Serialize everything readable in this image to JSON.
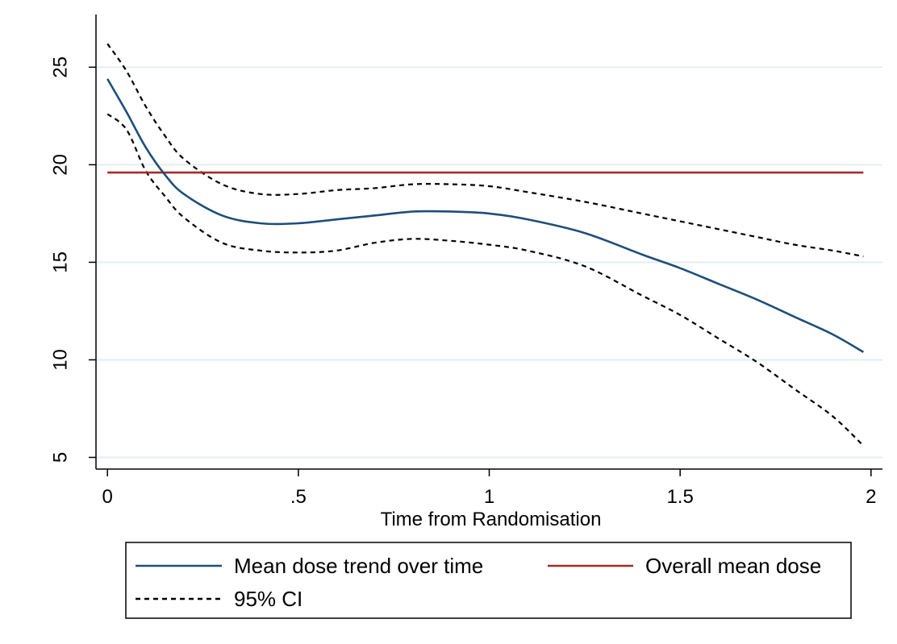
{
  "chart_data": {
    "type": "line",
    "title": "",
    "xlabel": "Time from Randomisation",
    "ylabel": "",
    "xlim": [
      -0.03,
      2.03
    ],
    "ylim": [
      4.4,
      27.7
    ],
    "x_ticks": [
      0,
      0.5,
      1,
      1.5,
      2
    ],
    "x_tick_labels": [
      "0",
      ".5",
      "1",
      "1.5",
      "2"
    ],
    "y_ticks": [
      5,
      10,
      15,
      20,
      25
    ],
    "y_tick_labels": [
      "5",
      "10",
      "15",
      "20",
      "25"
    ],
    "grid": "horizontal",
    "legend_position": "bottom",
    "series": [
      {
        "name": "Mean dose trend over time",
        "color": "#1f4e79",
        "style": "solid",
        "points": [
          [
            0,
            24.4
          ],
          [
            0.05,
            22.7
          ],
          [
            0.1,
            20.9
          ],
          [
            0.15,
            19.5
          ],
          [
            0.2,
            18.5
          ],
          [
            0.3,
            17.4
          ],
          [
            0.4,
            17.0
          ],
          [
            0.5,
            17.0
          ],
          [
            0.6,
            17.2
          ],
          [
            0.7,
            17.4
          ],
          [
            0.8,
            17.6
          ],
          [
            0.9,
            17.6
          ],
          [
            1.0,
            17.5
          ],
          [
            1.1,
            17.2
          ],
          [
            1.25,
            16.5
          ],
          [
            1.4,
            15.4
          ],
          [
            1.5,
            14.7
          ],
          [
            1.6,
            13.9
          ],
          [
            1.7,
            13.1
          ],
          [
            1.8,
            12.2
          ],
          [
            1.9,
            11.3
          ],
          [
            1.98,
            10.4
          ]
        ]
      },
      {
        "name": "Overall mean dose",
        "color": "#a52a2a",
        "style": "solid",
        "points": [
          [
            0,
            19.6
          ],
          [
            1.98,
            19.6
          ]
        ]
      },
      {
        "name": "95% CI",
        "color": "#000000",
        "style": "dashed",
        "points": [
          [
            0,
            26.2
          ],
          [
            0.05,
            24.8
          ],
          [
            0.1,
            23.0
          ],
          [
            0.15,
            21.5
          ],
          [
            0.2,
            20.3
          ],
          [
            0.3,
            19.0
          ],
          [
            0.4,
            18.5
          ],
          [
            0.5,
            18.5
          ],
          [
            0.6,
            18.7
          ],
          [
            0.7,
            18.8
          ],
          [
            0.8,
            19.0
          ],
          [
            0.9,
            19.0
          ],
          [
            1.0,
            18.9
          ],
          [
            1.1,
            18.6
          ],
          [
            1.25,
            18.1
          ],
          [
            1.4,
            17.5
          ],
          [
            1.5,
            17.1
          ],
          [
            1.6,
            16.7
          ],
          [
            1.7,
            16.3
          ],
          [
            1.8,
            15.9
          ],
          [
            1.9,
            15.6
          ],
          [
            1.98,
            15.3
          ]
        ]
      },
      {
        "name": "",
        "color": "#000000",
        "style": "dashed",
        "points": [
          [
            0,
            22.6
          ],
          [
            0.05,
            21.8
          ],
          [
            0.1,
            19.7
          ],
          [
            0.15,
            18.4
          ],
          [
            0.2,
            17.3
          ],
          [
            0.3,
            16.0
          ],
          [
            0.4,
            15.6
          ],
          [
            0.5,
            15.5
          ],
          [
            0.6,
            15.6
          ],
          [
            0.7,
            16.0
          ],
          [
            0.8,
            16.2
          ],
          [
            0.9,
            16.1
          ],
          [
            1.0,
            15.9
          ],
          [
            1.1,
            15.6
          ],
          [
            1.25,
            14.8
          ],
          [
            1.4,
            13.3
          ],
          [
            1.5,
            12.3
          ],
          [
            1.6,
            11.1
          ],
          [
            1.7,
            9.9
          ],
          [
            1.8,
            8.5
          ],
          [
            1.9,
            7.1
          ],
          [
            1.98,
            5.6
          ]
        ]
      }
    ],
    "legend": [
      {
        "label": "Mean dose trend over time",
        "color": "#1f4e79",
        "style": "solid"
      },
      {
        "label": "Overall mean dose",
        "color": "#a52a2a",
        "style": "solid"
      },
      {
        "label": "95% CI",
        "color": "#000000",
        "style": "dashed"
      }
    ]
  }
}
